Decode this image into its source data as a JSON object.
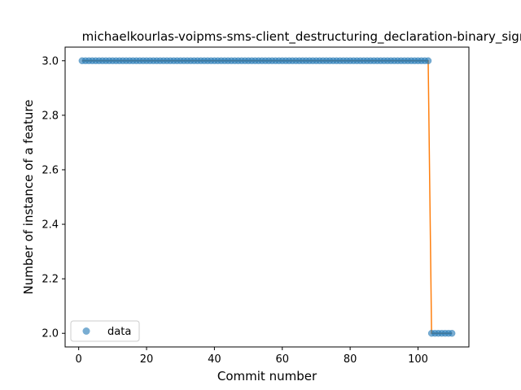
{
  "chart_data": {
    "type": "scatter",
    "title": "michaelkourlas-voipms-sms-client_destructuring_declaration-binary_sigmoid",
    "xlabel": "Commit number",
    "ylabel": "Number of instance of a feature",
    "xlim": [
      -4,
      115
    ],
    "ylim": [
      1.95,
      3.05
    ],
    "xticks": [
      0,
      20,
      40,
      60,
      80,
      100
    ],
    "yticks": [
      2.0,
      2.2,
      2.4,
      2.6,
      2.8,
      3.0
    ],
    "xtick_labels": [
      "0",
      "20",
      "40",
      "60",
      "80",
      "100"
    ],
    "ytick_labels": [
      "2.0",
      "2.2",
      "2.4",
      "2.6",
      "2.8",
      "3.0"
    ],
    "legend": {
      "placement": "lower-left",
      "entries": [
        "data"
      ]
    },
    "series": [
      {
        "name": "data",
        "kind": "points",
        "color": "#1f77b4",
        "segments": [
          {
            "x_start": 1,
            "x_end": 103,
            "y": 3.0
          },
          {
            "x_start": 104,
            "x_end": 110,
            "y": 2.0
          }
        ]
      },
      {
        "kind": "line",
        "color": "#ff7f0e",
        "x": [
          1,
          103,
          104,
          110
        ],
        "y": [
          3.0,
          3.0,
          2.0,
          2.0
        ]
      }
    ]
  }
}
